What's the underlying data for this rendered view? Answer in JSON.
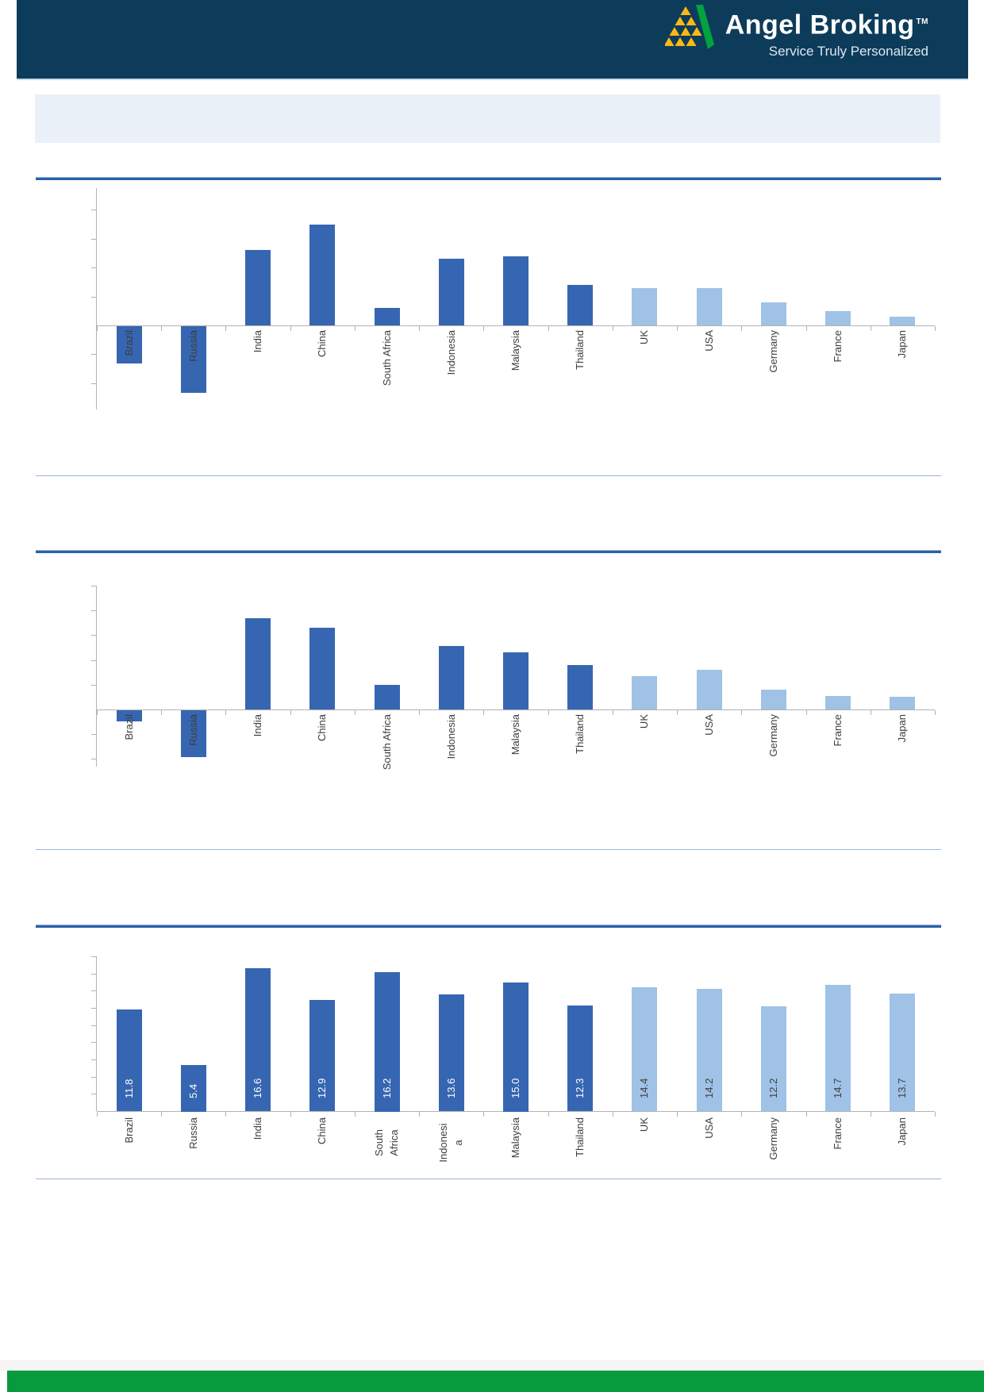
{
  "header": {
    "brand": "Angel Broking",
    "trademark": "TM",
    "tagline": "Service Truly Personalized"
  },
  "colors": {
    "header_navy": "#0d3c5b",
    "footer_green": "#089b3d",
    "title_box_bg": "#eaf1f8",
    "bar_dark_blue": "#3666b1",
    "bar_light_blue": "#9fc2e6",
    "rule_thick_blue": "#2b61aa",
    "rule_thin_blue": "#9ab7d6",
    "axis_gray": "#b3b3b3",
    "label_gray": "#3d3d3d",
    "logo_yellow": "#fdb913",
    "logo_green": "#00a33d"
  },
  "chart_data": [
    {
      "type": "bar",
      "title": "",
      "categories": [
        "Brazil",
        "Russia",
        "India",
        "China",
        "South Africa",
        "Indonesia",
        "Malaysia",
        "Thailand",
        "UK",
        "USA",
        "Germany",
        "France",
        "Japan"
      ],
      "values": [
        -1.3,
        -2.3,
        2.6,
        3.5,
        0.6,
        2.3,
        2.4,
        1.4,
        1.3,
        1.3,
        0.8,
        0.5,
        0.3
      ],
      "values_unit": "axis ticks (y-axis unlabeled, values estimated from gridline ticks)",
      "ylim": [
        -2.9,
        4.75
      ],
      "y_tick_step": 1,
      "y_tick_labels_visible": false,
      "grid": "off",
      "legend": "none",
      "bar_colors": [
        "#3666b1",
        "#3666b1",
        "#3666b1",
        "#3666b1",
        "#3666b1",
        "#3666b1",
        "#3666b1",
        "#3666b1",
        "#9fc2e6",
        "#9fc2e6",
        "#9fc2e6",
        "#9fc2e6",
        "#9fc2e6"
      ]
    },
    {
      "type": "bar",
      "title": "",
      "categories": [
        "Brazil",
        "Russia",
        "India",
        "China",
        "South Africa",
        "Indonesia",
        "Malaysia",
        "Thailand",
        "UK",
        "USA",
        "Germany",
        "France",
        "Japan"
      ],
      "values": [
        -0.45,
        -1.9,
        3.7,
        3.3,
        1.0,
        2.55,
        2.3,
        1.8,
        1.35,
        1.6,
        0.8,
        0.55,
        0.5
      ],
      "values_unit": "axis ticks (y-axis unlabeled, values estimated from gridline ticks)",
      "ylim": [
        -2.3,
        5.0
      ],
      "y_tick_step": 1,
      "y_tick_labels_visible": false,
      "grid": "off",
      "legend": "none",
      "bar_colors": [
        "#3666b1",
        "#3666b1",
        "#3666b1",
        "#3666b1",
        "#3666b1",
        "#3666b1",
        "#3666b1",
        "#3666b1",
        "#9fc2e6",
        "#9fc2e6",
        "#9fc2e6",
        "#9fc2e6",
        "#9fc2e6"
      ]
    },
    {
      "type": "bar",
      "title": "",
      "categories": [
        "Brazil",
        "Russia",
        "India",
        "China",
        "South Africa",
        "Indonesia",
        "Malaysia",
        "Thailand",
        "UK",
        "USA",
        "Germany",
        "France",
        "Japan"
      ],
      "categories_lines": [
        [
          "Brazil"
        ],
        [
          "Russia"
        ],
        [
          "India"
        ],
        [
          "China"
        ],
        [
          "South",
          "Africa"
        ],
        [
          "Indonesi",
          "a"
        ],
        [
          "Malaysia"
        ],
        [
          "Thailand"
        ],
        [
          "UK"
        ],
        [
          "USA"
        ],
        [
          "Germany"
        ],
        [
          "France"
        ],
        [
          "Japan"
        ]
      ],
      "values": [
        11.8,
        5.4,
        16.6,
        12.9,
        16.2,
        13.6,
        15.0,
        12.3,
        14.4,
        14.2,
        12.2,
        14.7,
        13.7
      ],
      "value_labels": [
        "11.8",
        "5.4",
        "16.6",
        "12.9",
        "16.2",
        "13.6",
        "15.0",
        "12.3",
        "14.4",
        "14.2",
        "12.2",
        "14.7",
        "13.7"
      ],
      "value_label_colors": [
        "#ffffff",
        "#ffffff",
        "#ffffff",
        "#ffffff",
        "#ffffff",
        "#ffffff",
        "#ffffff",
        "#ffffff",
        "#404040",
        "#404040",
        "#404040",
        "#404040",
        "#404040"
      ],
      "ylim": [
        0,
        18
      ],
      "y_tick_step": 2,
      "y_tick_labels_visible": false,
      "grid": "off",
      "legend": "none",
      "bar_colors": [
        "#3666b1",
        "#3666b1",
        "#3666b1",
        "#3666b1",
        "#3666b1",
        "#3666b1",
        "#3666b1",
        "#3666b1",
        "#9fc2e6",
        "#9fc2e6",
        "#9fc2e6",
        "#9fc2e6",
        "#9fc2e6"
      ]
    }
  ]
}
